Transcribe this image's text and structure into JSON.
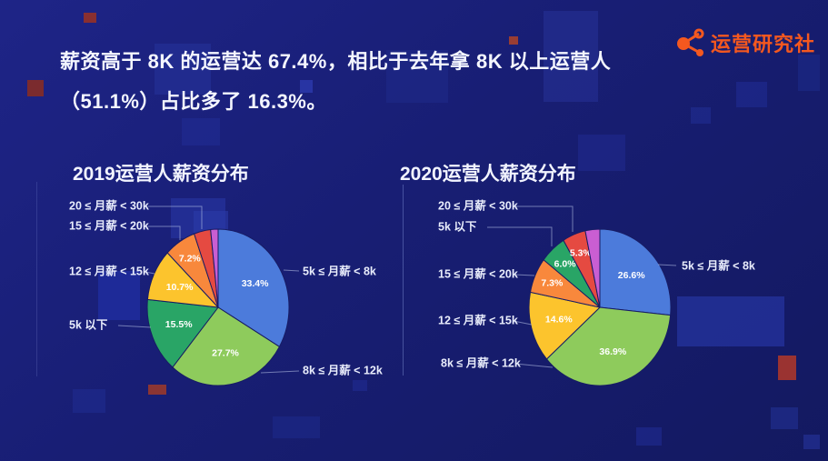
{
  "headline": {
    "line1": "薪资高于 8K 的运营达 67.4%，相比于去年拿 8K 以上运营人",
    "line2": "（51.1%）占比多了 16.3%。"
  },
  "logo": {
    "text": "运营研究社",
    "color": "#f4581f",
    "icon": "share-network-icon"
  },
  "colors": {
    "background": "#181e74",
    "accent_orange": "#f4581f",
    "text": "#f4f6ff",
    "leader_line": "rgba(190,200,235,0.55)"
  },
  "chart_data": [
    {
      "type": "pie",
      "title": "2019运营人薪资分布",
      "legend_position": "callout-labels",
      "slices": [
        {
          "label": "5k ≤ 月薪 < 8k",
          "value": 33.4,
          "pct_label": "33.4%",
          "color": "#4c7bdb"
        },
        {
          "label": "8k ≤ 月薪 < 12k",
          "value": 27.7,
          "pct_label": "27.7%",
          "color": "#8ecb5c"
        },
        {
          "label": "5k 以下",
          "value": 15.5,
          "pct_label": "15.5%",
          "color": "#29a566"
        },
        {
          "label": "12 ≤ 月薪 < 15k",
          "value": 10.7,
          "pct_label": "10.7%",
          "color": "#fcc42d"
        },
        {
          "label": "15 ≤ 月薪 < 20k",
          "value": 7.2,
          "pct_label": "7.2%",
          "color": "#f8883c"
        },
        {
          "label": "20 ≤ 月薪 < 30k",
          "value": 3.8,
          "pct_label": "",
          "color": "#e54a41"
        },
        {
          "label": "",
          "value": 1.7,
          "pct_label": "",
          "color": "#c95ed2"
        }
      ]
    },
    {
      "type": "pie",
      "title": "2020运营人薪资分布",
      "legend_position": "callout-labels",
      "slices": [
        {
          "label": "5k ≤ 月薪 < 8k",
          "value": 26.6,
          "pct_label": "26.6%",
          "color": "#4c7bdb"
        },
        {
          "label": "8k ≤ 月薪 < 12k",
          "value": 36.9,
          "pct_label": "36.9%",
          "color": "#8ecb5c"
        },
        {
          "label": "12 ≤ 月薪 < 15k",
          "value": 14.6,
          "pct_label": "14.6%",
          "color": "#fcc42d"
        },
        {
          "label": "15 ≤ 月薪 < 20k",
          "value": 7.3,
          "pct_label": "7.3%",
          "color": "#f8883c"
        },
        {
          "label": "5k 以下",
          "value": 6.0,
          "pct_label": "6.0%",
          "color": "#29a566"
        },
        {
          "label": "20 ≤ 月薪 < 30k",
          "value": 5.3,
          "pct_label": "5.3%",
          "color": "#e54a41"
        },
        {
          "label": "",
          "value": 3.3,
          "pct_label": "",
          "color": "#c95ed2"
        }
      ]
    }
  ]
}
